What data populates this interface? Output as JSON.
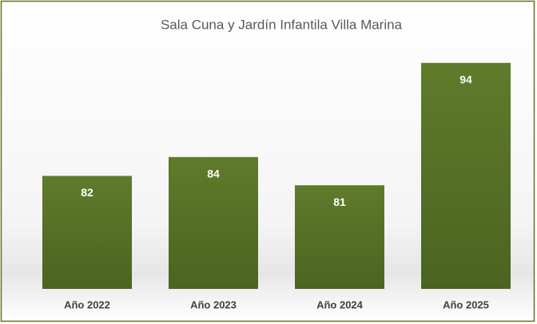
{
  "chart_data": {
    "type": "bar",
    "title": "Sala Cuna y Jardín Infantila Villa Marina",
    "categories": [
      "Año 2022",
      "Año 2023",
      "Año 2024",
      "Año 2025"
    ],
    "values": [
      82,
      84,
      81,
      94
    ],
    "color": "#5a7427",
    "ylim": [
      70,
      96
    ]
  }
}
